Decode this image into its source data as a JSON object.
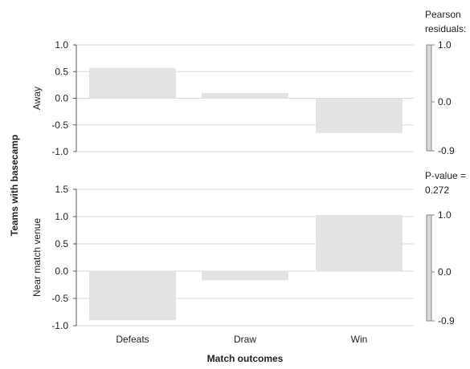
{
  "chart_data": {
    "type": "bar",
    "xlabel": "Match outcomes",
    "ylabel": "Teams with basecamp",
    "categories": [
      "Defeats",
      "Draw",
      "Win"
    ],
    "panels": [
      {
        "ylabel": "Away",
        "ylim": [
          -1.0,
          1.0
        ],
        "yticks": [
          "1.0",
          "0.5",
          "0.0",
          "-0.5",
          "-1.0"
        ],
        "ytick_values": [
          1.0,
          0.5,
          0.0,
          -0.5,
          -1.0
        ],
        "values": [
          0.57,
          0.1,
          -0.65
        ]
      },
      {
        "ylabel": "Near match venue",
        "ylim": [
          -1.0,
          1.5
        ],
        "yticks": [
          "1.5",
          "1.0",
          "0.5",
          "0.0",
          "-0.5",
          "-1.0"
        ],
        "ytick_values": [
          1.5,
          1.0,
          0.5,
          0.0,
          -0.5,
          -1.0
        ],
        "values": [
          -0.9,
          -0.17,
          1.03
        ]
      }
    ],
    "legend": {
      "title_line1": "Pearson",
      "title_line2": "residuals:",
      "bars": [
        {
          "ticks": [
            "1.0",
            "0.0",
            "-0.9"
          ]
        },
        {
          "ticks": [
            "1.0",
            "0.0",
            "-0.9"
          ]
        }
      ]
    },
    "pvalue_line1": "P-value =",
    "pvalue_line2": "0.272",
    "bar_color": "#e3e3e3",
    "grid": true
  }
}
